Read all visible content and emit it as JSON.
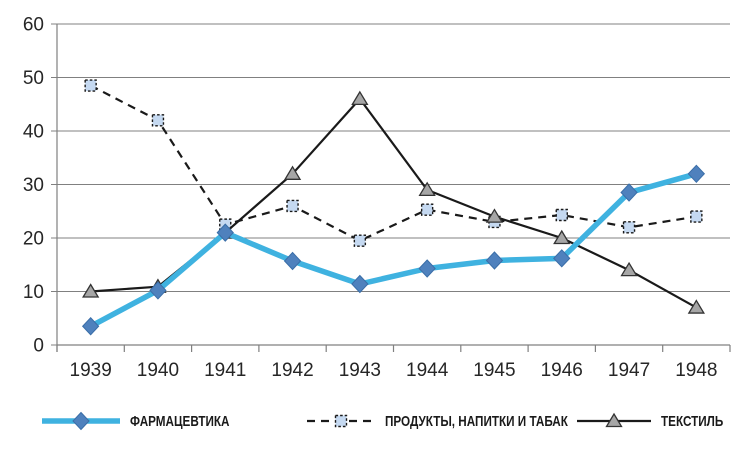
{
  "chart_data": {
    "type": "line",
    "title": "",
    "xlabel": "",
    "ylabel": "",
    "categories": [
      "1939",
      "1940",
      "1941",
      "1942",
      "1943",
      "1944",
      "1945",
      "1946",
      "1947",
      "1948"
    ],
    "ylim": [
      0,
      60
    ],
    "ytick_step": 10,
    "yticks": [
      0,
      10,
      20,
      30,
      40,
      50,
      60
    ],
    "grid": "horizontal",
    "legend_position": "bottom",
    "axis_color": "#808080",
    "tick_label_color": "#262626",
    "series": [
      {
        "name": "ФАРМАЦЕВТИКА",
        "values": [
          3.5,
          10.2,
          21,
          15.7,
          11.4,
          14.3,
          15.8,
          16.2,
          28.5,
          32
        ],
        "line_style": "solid",
        "line_color": "#3FB2E0",
        "line_width": 5.5,
        "marker": "diamond",
        "marker_color": "#4F81BD"
      },
      {
        "name": "ПРОДУКТЫ, НАПИТКИ И ТАБАК",
        "values": [
          48.5,
          42,
          22.5,
          26,
          19.5,
          25.3,
          23,
          24.3,
          22,
          24
        ],
        "line_style": "dashed",
        "line_color": "#1a1a1a",
        "line_width": 2.2,
        "marker": "square",
        "marker_color": "#C5D9F1"
      },
      {
        "name": "ТЕКСТИЛЬ",
        "values": [
          10,
          10.9,
          21,
          32,
          46,
          29,
          24,
          20,
          14,
          7
        ],
        "line_style": "solid",
        "line_color": "#1a1a1a",
        "line_width": 2.2,
        "marker": "triangle",
        "marker_color": "#A6A6A6"
      }
    ]
  }
}
